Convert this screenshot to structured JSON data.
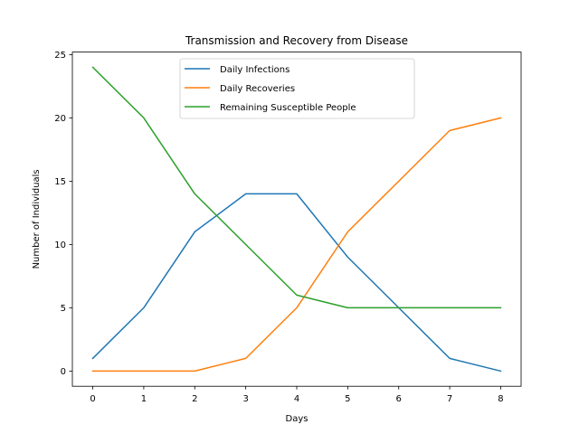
{
  "chart_data": {
    "type": "line",
    "title": "Transmission and Recovery from Disease",
    "xlabel": "Days",
    "ylabel": "Number of Individuals",
    "x": [
      0,
      1,
      2,
      3,
      4,
      5,
      6,
      7,
      8
    ],
    "xlim": [
      -0.4,
      8.4
    ],
    "ylim": [
      -1.2,
      25.2
    ],
    "xticks": [
      0,
      1,
      2,
      3,
      4,
      5,
      6,
      7,
      8
    ],
    "yticks": [
      0,
      5,
      10,
      15,
      20,
      25
    ],
    "grid": false,
    "legend_position": "upper center",
    "series": [
      {
        "name": "Daily Infections",
        "color": "#1f77b4",
        "values": [
          1,
          5,
          11,
          14,
          14,
          9,
          5,
          1,
          0
        ]
      },
      {
        "name": "Daily Recoveries",
        "color": "#ff7f0e",
        "values": [
          0,
          0,
          0,
          1,
          5,
          11,
          15,
          19,
          20
        ]
      },
      {
        "name": "Remaining Susceptible People",
        "color": "#2ca02c",
        "values": [
          24,
          20,
          14,
          10,
          6,
          5,
          5,
          5,
          5
        ]
      }
    ]
  }
}
